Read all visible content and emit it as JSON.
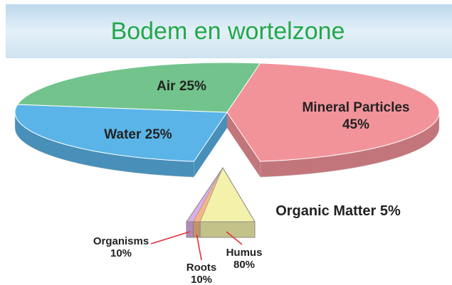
{
  "chart_data": {
    "type": "pie",
    "title": "Bodem en wortelzone",
    "categories": [
      "Water",
      "Air",
      "Mineral Particles",
      "Organic Matter"
    ],
    "values": [
      25,
      25,
      45,
      5
    ],
    "value_labels": [
      "25%",
      "25%",
      "45%",
      "5%"
    ],
    "colors": [
      "#5ab4e8",
      "#72c48c",
      "#f2939a",
      "#f2f0a8"
    ],
    "breakdown": {
      "categories": [
        "Organisms",
        "Roots",
        "Humus"
      ],
      "values": [
        10,
        10,
        80
      ],
      "value_labels": [
        "10%",
        "10%",
        "80%"
      ],
      "colors": [
        "#dcaee6",
        "#f6b684",
        "#f4f2aa"
      ]
    }
  }
}
